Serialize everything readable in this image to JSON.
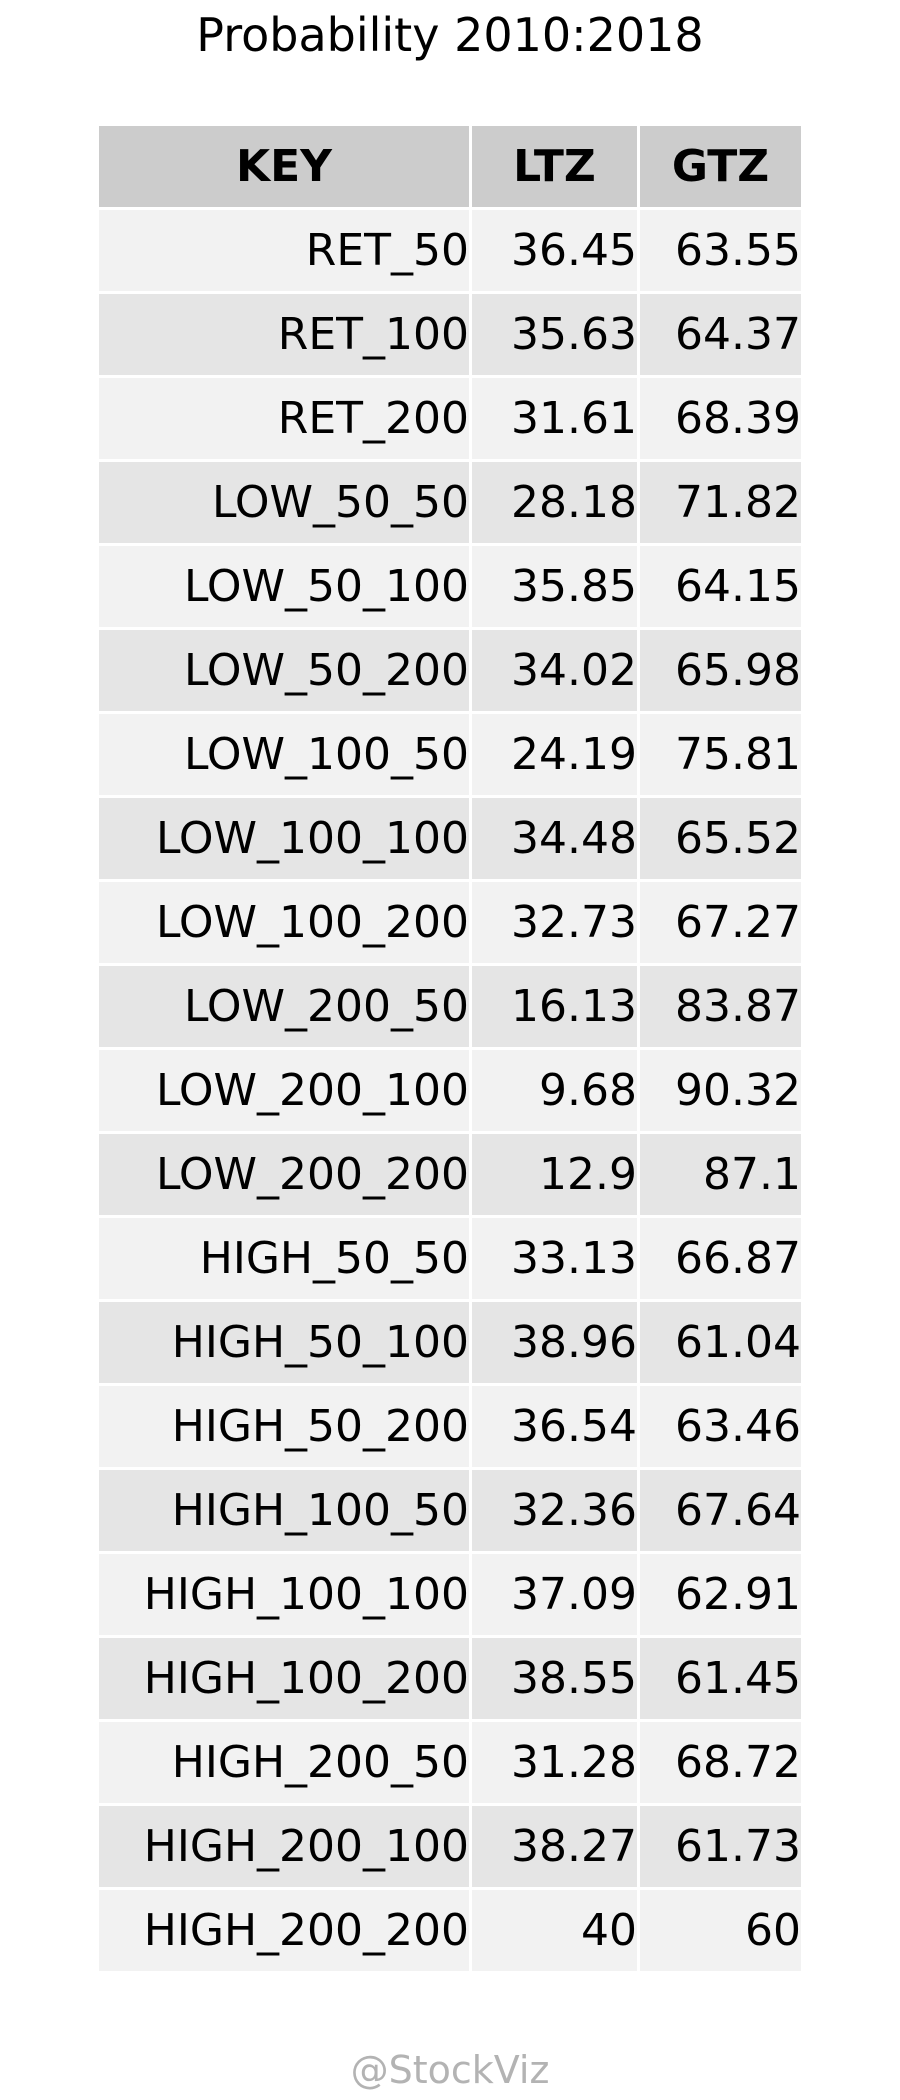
{
  "chart_data": {
    "type": "table",
    "title": "Probability 2010:2018",
    "columns": [
      "KEY",
      "LTZ",
      "GTZ"
    ],
    "rows": [
      [
        "RET_50",
        "36.45",
        "63.55"
      ],
      [
        "RET_100",
        "35.63",
        "64.37"
      ],
      [
        "RET_200",
        "31.61",
        "68.39"
      ],
      [
        "LOW_50_50",
        "28.18",
        "71.82"
      ],
      [
        "LOW_50_100",
        "35.85",
        "64.15"
      ],
      [
        "LOW_50_200",
        "34.02",
        "65.98"
      ],
      [
        "LOW_100_50",
        "24.19",
        "75.81"
      ],
      [
        "LOW_100_100",
        "34.48",
        "65.52"
      ],
      [
        "LOW_100_200",
        "32.73",
        "67.27"
      ],
      [
        "LOW_200_50",
        "16.13",
        "83.87"
      ],
      [
        "LOW_200_100",
        "9.68",
        "90.32"
      ],
      [
        "LOW_200_200",
        "12.9",
        "87.1"
      ],
      [
        "HIGH_50_50",
        "33.13",
        "66.87"
      ],
      [
        "HIGH_50_100",
        "38.96",
        "61.04"
      ],
      [
        "HIGH_50_200",
        "36.54",
        "63.46"
      ],
      [
        "HIGH_100_50",
        "32.36",
        "67.64"
      ],
      [
        "HIGH_100_100",
        "37.09",
        "62.91"
      ],
      [
        "HIGH_100_200",
        "38.55",
        "61.45"
      ],
      [
        "HIGH_200_50",
        "31.28",
        "68.72"
      ],
      [
        "HIGH_200_100",
        "38.27",
        "61.73"
      ],
      [
        "HIGH_200_200",
        "40",
        "60"
      ]
    ],
    "colors": {
      "header_bg": "#cccccc",
      "row_odd_bg": "#f2f2f2",
      "row_even_bg": "#e5e5e5",
      "footer_text": "#b3b3b3"
    }
  },
  "footer": {
    "watermark": "@StockViz"
  }
}
